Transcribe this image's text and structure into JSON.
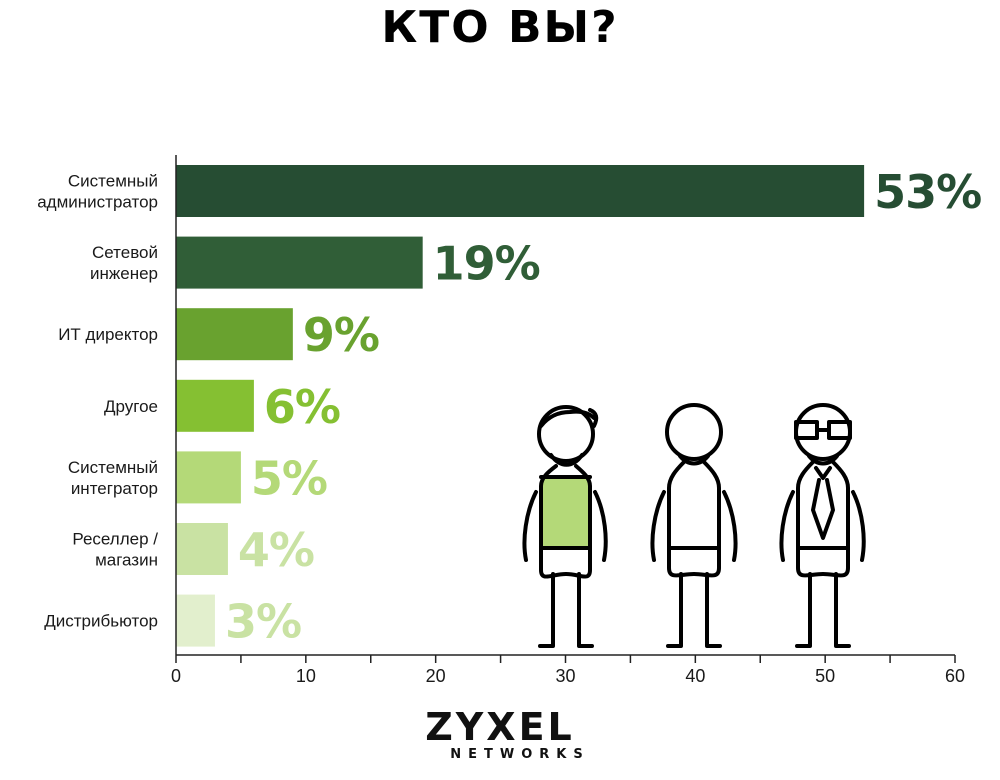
{
  "logo": {
    "word": "ZYXEL",
    "sub": "NETWORKS"
  },
  "chart_data": {
    "type": "bar",
    "orientation": "horizontal",
    "title": "КТО ВЫ?",
    "categories": [
      [
        "Системный",
        "администратор"
      ],
      [
        "Сетевой",
        "инженер"
      ],
      [
        "ИТ директор"
      ],
      [
        "Другое"
      ],
      [
        "Системный",
        "интегратор"
      ],
      [
        "Реселлер /",
        "магазин"
      ],
      [
        "Дистрибьютор"
      ]
    ],
    "values": [
      53,
      19,
      9,
      6,
      5,
      4,
      3
    ],
    "value_labels": [
      "53%",
      "19%",
      "9%",
      "6%",
      "5%",
      "4%",
      "3%"
    ],
    "bar_colors": [
      "#264d33",
      "#305e37",
      "#69a22f",
      "#85c032",
      "#b4d978",
      "#c9e2a3",
      "#e2efcd"
    ],
    "label_colors": [
      "#264d33",
      "#305e37",
      "#69a22f",
      "#85c032",
      "#b4d978",
      "#c9e2a3",
      "#c9e2a3"
    ],
    "xlim": [
      0,
      60
    ],
    "xticks": [
      0,
      10,
      20,
      30,
      40,
      50,
      60
    ],
    "grid": false,
    "legend": "none"
  },
  "illustration": {
    "figures": [
      "figure-with-green-shirt",
      "figure-plain",
      "figure-with-glasses-and-tie"
    ],
    "accent_color": "#b4d978"
  }
}
